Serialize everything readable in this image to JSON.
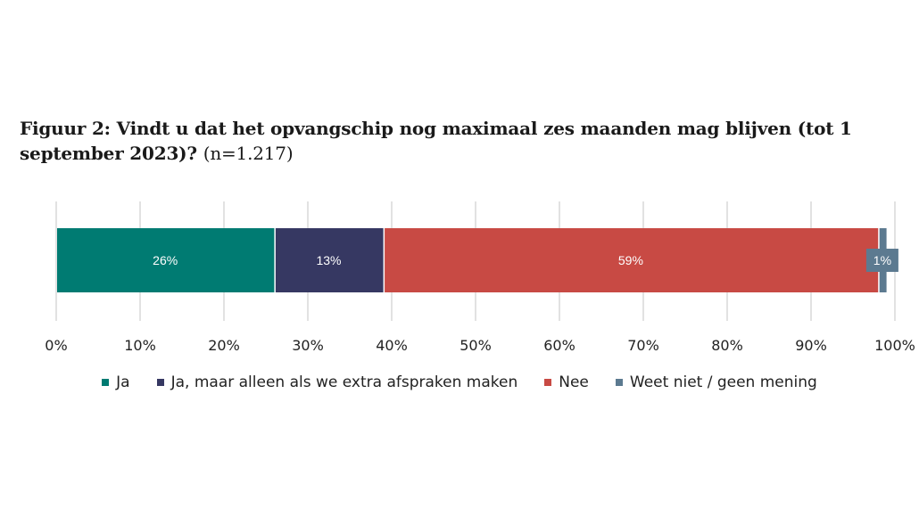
{
  "title": {
    "main": "Figuur 2: Vindt u dat het opvangschip nog maximaal zes maanden mag blijven (tot 1 september 2023)?",
    "n_note": "(n=1.217)"
  },
  "chart_data": {
    "type": "bar",
    "orientation": "horizontal",
    "stacked": true,
    "title": "Figuur 2: Vindt u dat het opvangschip nog maximaal zes maanden mag blijven (tot 1 september 2023)? (n=1.217)",
    "xlim": [
      0,
      100
    ],
    "x_ticks": [
      "0%",
      "10%",
      "20%",
      "30%",
      "40%",
      "50%",
      "60%",
      "70%",
      "80%",
      "90%",
      "100%"
    ],
    "grid": true,
    "legend_position": "bottom",
    "series": [
      {
        "name": "Ja",
        "value": 26,
        "label": "26%",
        "color": "#007b72"
      },
      {
        "name": "Ja, maar alleen als we extra afspraken maken",
        "value": 13,
        "label": "13%",
        "color": "#363862"
      },
      {
        "name": "Nee",
        "value": 59,
        "label": "59%",
        "color": "#c84a44"
      },
      {
        "name": "Weet niet / geen mening",
        "value": 1,
        "label": "1%",
        "color": "#5c7a90"
      }
    ]
  }
}
